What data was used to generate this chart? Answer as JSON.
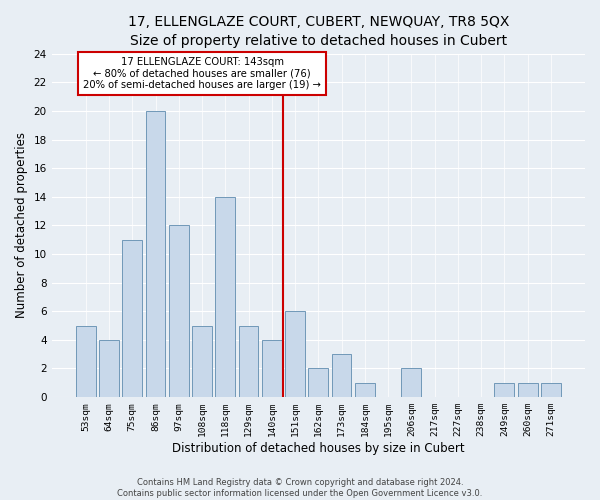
{
  "title": "17, ELLENGLAZE COURT, CUBERT, NEWQUAY, TR8 5QX",
  "subtitle": "Size of property relative to detached houses in Cubert",
  "xlabel": "Distribution of detached houses by size in Cubert",
  "ylabel": "Number of detached properties",
  "bar_labels": [
    "53sqm",
    "64sqm",
    "75sqm",
    "86sqm",
    "97sqm",
    "108sqm",
    "118sqm",
    "129sqm",
    "140sqm",
    "151sqm",
    "162sqm",
    "173sqm",
    "184sqm",
    "195sqm",
    "206sqm",
    "217sqm",
    "227sqm",
    "238sqm",
    "249sqm",
    "260sqm",
    "271sqm"
  ],
  "bar_values": [
    5,
    4,
    11,
    20,
    12,
    5,
    14,
    5,
    4,
    6,
    2,
    3,
    1,
    0,
    2,
    0,
    0,
    0,
    1,
    1,
    1
  ],
  "bar_color": "#c8d8ea",
  "bar_edgecolor": "#7098b8",
  "vline_color": "#cc0000",
  "annotation_text": "17 ELLENGLAZE COURT: 143sqm\n← 80% of detached houses are smaller (76)\n20% of semi-detached houses are larger (19) →",
  "annotation_box_color": "#ffffff",
  "annotation_box_edgecolor": "#cc0000",
  "ylim": [
    0,
    24
  ],
  "yticks": [
    0,
    2,
    4,
    6,
    8,
    10,
    12,
    14,
    16,
    18,
    20,
    22,
    24
  ],
  "title_fontsize": 10,
  "xlabel_fontsize": 8.5,
  "ylabel_fontsize": 8.5,
  "footer1": "Contains HM Land Registry data © Crown copyright and database right 2024.",
  "footer2": "Contains public sector information licensed under the Open Government Licence v3.0.",
  "background_color": "#e8eef4",
  "plot_bg_color": "#e8eef4"
}
